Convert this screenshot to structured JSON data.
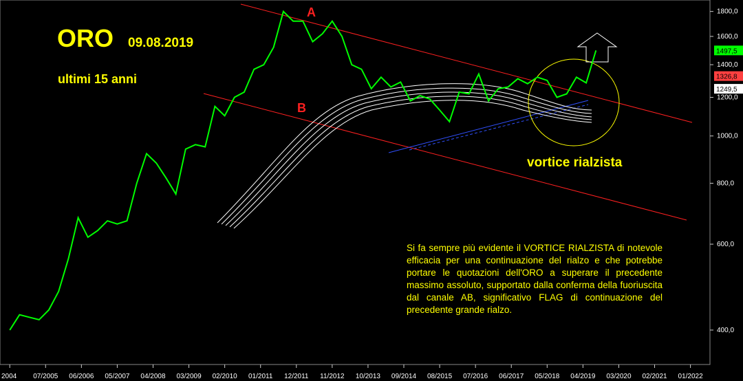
{
  "chart_data": {
    "type": "line",
    "title": "ORO",
    "subtitle": "09.08.2019",
    "annotations": {
      "period": "ultimi  15 anni",
      "a": "A",
      "b": "B",
      "vortex": "vortice rialzista",
      "note": "Si fa sempre più evidente il VORTICE RIALZISTA di notevole efficacia per una continuazione del rialzo e che potrebbe portare le quotazioni dell'ORO a superare il precedente massimo assoluto, supportato dalla conferma della fuoriuscita dal canale AB, significativo FLAG di continuazione del precedente grande rialzo."
    },
    "log_scale": true,
    "x": [
      "08/2004",
      "11/2004",
      "02/2005",
      "05/2005",
      "08/2005",
      "11/2005",
      "02/2006",
      "05/2006",
      "08/2006",
      "11/2006",
      "02/2007",
      "05/2007",
      "08/2007",
      "11/2007",
      "02/2008",
      "05/2008",
      "08/2008",
      "11/2008",
      "02/2009",
      "05/2009",
      "08/2009",
      "11/2009",
      "02/2010",
      "05/2010",
      "08/2010",
      "11/2010",
      "02/2011",
      "05/2011",
      "08/2011",
      "11/2011",
      "02/2012",
      "05/2012",
      "08/2012",
      "11/2012",
      "02/2013",
      "05/2013",
      "08/2013",
      "11/2013",
      "02/2014",
      "05/2014",
      "08/2014",
      "11/2014",
      "02/2015",
      "05/2015",
      "08/2015",
      "11/2015",
      "02/2016",
      "05/2016",
      "08/2016",
      "11/2016",
      "02/2017",
      "05/2017",
      "08/2017",
      "11/2017",
      "02/2018",
      "05/2018",
      "08/2018",
      "11/2018",
      "02/2019",
      "05/2019",
      "08/2019"
    ],
    "series": [
      {
        "name": "ORO",
        "color": "#00ff00",
        "values": [
          400,
          430,
          425,
          420,
          440,
          480,
          560,
          680,
          620,
          640,
          670,
          660,
          670,
          800,
          920,
          880,
          820,
          760,
          940,
          960,
          950,
          1150,
          1100,
          1200,
          1230,
          1370,
          1400,
          1520,
          1800,
          1720,
          1720,
          1560,
          1620,
          1720,
          1600,
          1400,
          1370,
          1250,
          1320,
          1260,
          1290,
          1180,
          1210,
          1190,
          1130,
          1070,
          1230,
          1220,
          1340,
          1180,
          1250,
          1260,
          1310,
          1280,
          1320,
          1300,
          1200,
          1220,
          1320,
          1285,
          1497.5
        ],
        "value_labels": {
          "60": "1497,5"
        }
      }
    ],
    "price_tags": [
      {
        "value": 1326.8,
        "label": "1326,8",
        "color": "#ff4040"
      },
      {
        "value": 1249.5,
        "label": "1249,5",
        "color": "#ffffff"
      }
    ],
    "xlim": [
      "05/2004",
      "07/2022"
    ],
    "xticks": [
      {
        "value": "08/2004",
        "label": "2004"
      },
      "07/2005",
      "06/2006",
      "05/2007",
      "04/2008",
      "03/2009",
      "02/2010",
      "01/2011",
      "12/2011",
      "11/2012",
      "10/2013",
      "09/2014",
      "08/2015",
      "07/2016",
      "06/2017",
      "05/2018",
      "04/2019",
      "03/2020",
      "02/2021",
      "01/2022"
    ],
    "ylim": [
      340,
      1900
    ],
    "yticks": [
      {
        "value": 400,
        "label": "400,0"
      },
      {
        "value": 600,
        "label": "600,0"
      },
      {
        "value": 800,
        "label": "800,0"
      },
      {
        "value": 1000,
        "label": "1000,0"
      },
      {
        "value": 1200,
        "label": "1200,0"
      },
      {
        "value": 1400,
        "label": "1400,0"
      },
      {
        "value": 1600,
        "label": "1600,0"
      },
      {
        "value": 1800,
        "label": "1800,0"
      }
    ]
  }
}
